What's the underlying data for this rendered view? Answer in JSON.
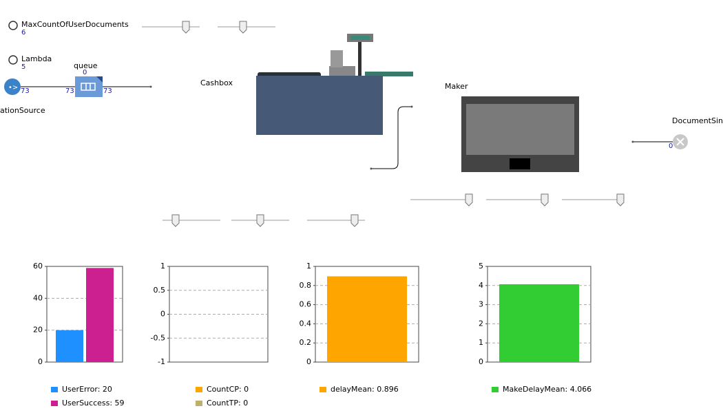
{
  "parameters": [
    {
      "name": "MaxCountOfUserDocuments",
      "value": 6
    },
    {
      "name": "Lambda",
      "value": 5
    }
  ],
  "source": {
    "label": "ationSource",
    "out": 73
  },
  "queue": {
    "label": "queue",
    "size": 0,
    "in": 73,
    "out": 73
  },
  "cashbox": {
    "label": "Cashbox"
  },
  "maker": {
    "label": "Maker"
  },
  "sink": {
    "label": "DocumentSink",
    "in": 0
  },
  "chart_data": [
    {
      "type": "bar",
      "ylim": [
        0,
        60
      ],
      "yticks": [
        0,
        20,
        40,
        60
      ],
      "grid": true,
      "series": [
        {
          "name": "UserError: 20",
          "color": "#1e90ff",
          "values": [
            20
          ]
        },
        {
          "name": "UserSuccess: 59",
          "color": "#cc2090",
          "values": [
            59
          ]
        }
      ]
    },
    {
      "type": "bar",
      "ylim": [
        -1,
        1
      ],
      "yticks": [
        -1,
        -0.5,
        0,
        0.5,
        1
      ],
      "grid": true,
      "series": [
        {
          "name": "CountCP: 0",
          "color": "#ffa500",
          "values": [
            0
          ]
        },
        {
          "name": "CountTP: 0",
          "color": "#bdb06a",
          "values": [
            0
          ]
        }
      ]
    },
    {
      "type": "bar",
      "ylim": [
        0,
        1
      ],
      "yticks": [
        0,
        0.2,
        0.4,
        0.6,
        0.8,
        1
      ],
      "grid": true,
      "series": [
        {
          "name": "delayMean: 0.896",
          "color": "#ffa500",
          "values": [
            0.896
          ]
        }
      ]
    },
    {
      "type": "bar",
      "ylim": [
        0,
        5
      ],
      "yticks": [
        0,
        1,
        2,
        3,
        4,
        5
      ],
      "grid": true,
      "series": [
        {
          "name": "MakeDelayMean: 4.066",
          "color": "#32cd32",
          "values": [
            4.066
          ]
        }
      ]
    }
  ]
}
